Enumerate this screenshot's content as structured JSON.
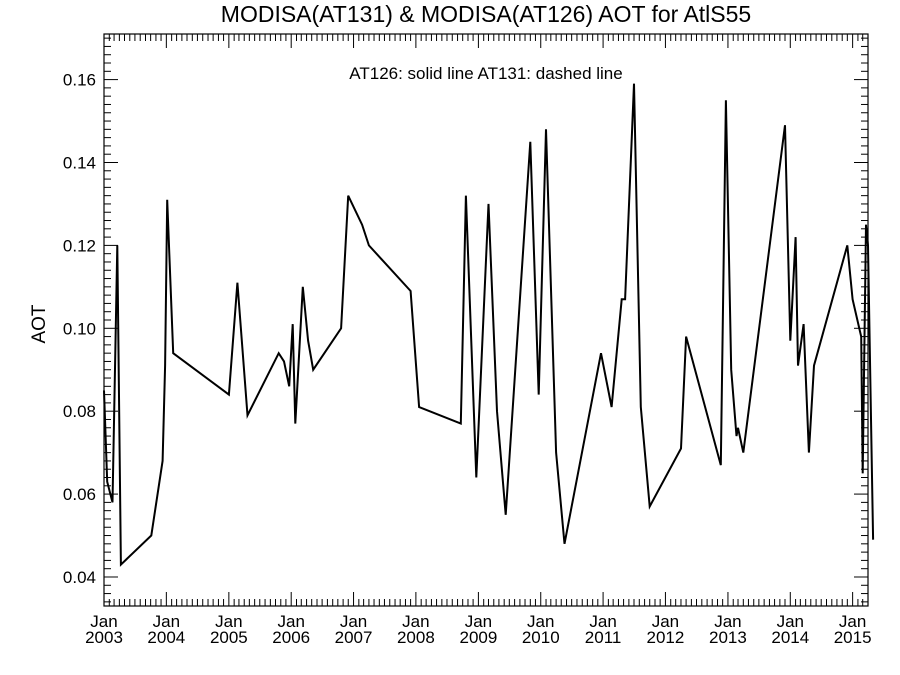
{
  "chart_data": {
    "type": "line",
    "title": "MODISA(AT131) & MODISA(AT126)  AOT for AtlS55",
    "annotation": "AT126: solid line   AT131: dashed line",
    "xlabel": "",
    "ylabel": "AOT",
    "xlim": [
      "2003-01-01",
      "2015-04-01"
    ],
    "ylim": [
      0.033,
      0.171
    ],
    "yticks": [
      "0.04",
      "0.06",
      "0.08",
      "0.10",
      "0.12",
      "0.14",
      "0.16"
    ],
    "xticks": [
      {
        "month": "Jan",
        "year": "2003",
        "date": "2003-01-01"
      },
      {
        "month": "Jan",
        "year": "2004",
        "date": "2004-01-01"
      },
      {
        "month": "Jan",
        "year": "2005",
        "date": "2005-01-01"
      },
      {
        "month": "Jan",
        "year": "2006",
        "date": "2006-01-01"
      },
      {
        "month": "Jan",
        "year": "2007",
        "date": "2007-01-01"
      },
      {
        "month": "Jan",
        "year": "2008",
        "date": "2008-01-01"
      },
      {
        "month": "Jan",
        "year": "2009",
        "date": "2009-01-01"
      },
      {
        "month": "Jan",
        "year": "2010",
        "date": "2010-01-01"
      },
      {
        "month": "Jan",
        "year": "2011",
        "date": "2011-01-01"
      },
      {
        "month": "Jan",
        "year": "2012",
        "date": "2012-01-01"
      },
      {
        "month": "Jan",
        "year": "2013",
        "date": "2013-01-01"
      },
      {
        "month": "Jan",
        "year": "2014",
        "date": "2014-01-01"
      },
      {
        "month": "Jan",
        "year": "2015",
        "date": "2015-01-01"
      }
    ],
    "grid": false,
    "series": [
      {
        "name": "AT126",
        "style": "solid",
        "color": "#000000",
        "points": [
          [
            "2003-01-01",
            0.085
          ],
          [
            "2003-01-20",
            0.063
          ],
          [
            "2003-02-20",
            0.058
          ],
          [
            "2003-03-20",
            0.12
          ],
          [
            "2003-04-10",
            0.043
          ],
          [
            "2003-10-05",
            0.05
          ],
          [
            "2003-12-10",
            0.068
          ],
          [
            "2003-12-25",
            0.091
          ],
          [
            "2004-01-06",
            0.131
          ],
          [
            "2004-02-10",
            0.094
          ],
          [
            "2005-01-01",
            0.084
          ],
          [
            "2005-02-20",
            0.111
          ],
          [
            "2005-04-20",
            0.079
          ],
          [
            "2005-10-20",
            0.094
          ],
          [
            "2005-11-20",
            0.092
          ],
          [
            "2005-12-20",
            0.086
          ],
          [
            "2006-01-10",
            0.101
          ],
          [
            "2006-01-25",
            0.077
          ],
          [
            "2006-03-10",
            0.11
          ],
          [
            "2006-04-10",
            0.097
          ],
          [
            "2006-05-10",
            0.09
          ],
          [
            "2006-10-20",
            0.1
          ],
          [
            "2006-12-01",
            0.132
          ],
          [
            "2007-02-20",
            0.125
          ],
          [
            "2007-04-01",
            0.12
          ],
          [
            "2007-12-01",
            0.109
          ],
          [
            "2008-01-20",
            0.081
          ],
          [
            "2008-09-20",
            0.077
          ],
          [
            "2008-10-20",
            0.132
          ],
          [
            "2008-12-20",
            0.064
          ],
          [
            "2009-03-01",
            0.13
          ],
          [
            "2009-04-20",
            0.08
          ],
          [
            "2009-06-10",
            0.055
          ],
          [
            "2009-11-01",
            0.145
          ],
          [
            "2009-12-20",
            0.084
          ],
          [
            "2010-02-01",
            0.148
          ],
          [
            "2010-04-01",
            0.07
          ],
          [
            "2010-05-20",
            0.048
          ],
          [
            "2010-12-20",
            0.094
          ],
          [
            "2011-02-20",
            0.081
          ],
          [
            "2011-04-20",
            0.107
          ],
          [
            "2011-05-10",
            0.107
          ],
          [
            "2011-07-01",
            0.159
          ],
          [
            "2011-08-10",
            0.081
          ],
          [
            "2011-10-01",
            0.057
          ],
          [
            "2012-04-01",
            0.071
          ],
          [
            "2012-05-01",
            0.098
          ],
          [
            "2012-11-20",
            0.067
          ],
          [
            "2012-12-20",
            0.155
          ],
          [
            "2013-01-20",
            0.09
          ],
          [
            "2013-02-20",
            0.074
          ],
          [
            "2013-03-01",
            0.076
          ],
          [
            "2013-04-01",
            0.07
          ],
          [
            "2013-12-01",
            0.149
          ],
          [
            "2014-01-01",
            0.097
          ],
          [
            "2014-02-01",
            0.122
          ],
          [
            "2014-02-15",
            0.091
          ],
          [
            "2014-03-20",
            0.101
          ],
          [
            "2014-04-20",
            0.07
          ],
          [
            "2014-05-20",
            0.091
          ],
          [
            "2014-12-01",
            0.12
          ],
          [
            "2015-01-01",
            0.107
          ],
          [
            "2015-02-20",
            0.098
          ],
          [
            "2015-03-01",
            0.065
          ],
          [
            "2015-03-20",
            0.125
          ],
          [
            "2015-04-01",
            0.12
          ],
          [
            "2015-05-01",
            0.049
          ]
        ]
      }
    ]
  }
}
